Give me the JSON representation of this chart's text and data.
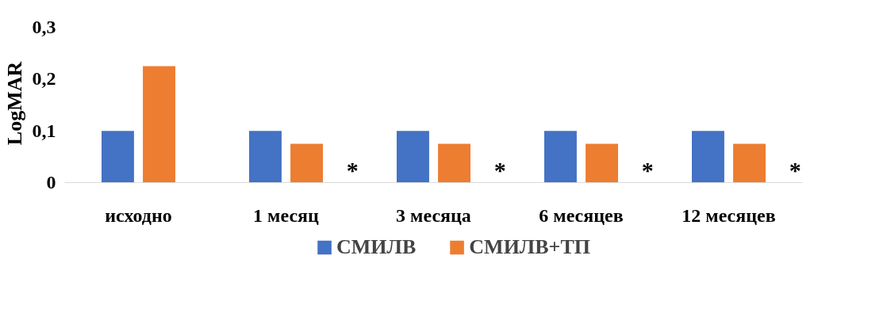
{
  "chart_data": {
    "type": "bar",
    "ylabel": "LogMAR",
    "categories": [
      "исходно",
      "1 месяц",
      "3 месяца",
      "6 месяцев",
      "12 месяцев"
    ],
    "series": [
      {
        "name": "СМИЛВ",
        "color": "#4472c4",
        "values": [
          0.1,
          0.1,
          0.1,
          0.1,
          0.1
        ]
      },
      {
        "name": "СМИЛВ+ТП",
        "color": "#ed7d31",
        "values": [
          0.225,
          0.075,
          0.075,
          0.075,
          0.075
        ]
      }
    ],
    "ylim": [
      0,
      0.3
    ],
    "yticks": [
      {
        "value": 0,
        "label": "0"
      },
      {
        "value": 0.1,
        "label": "0,1"
      },
      {
        "value": 0.2,
        "label": "0,2"
      },
      {
        "value": 0.3,
        "label": "0,3"
      }
    ],
    "annotations": [
      "*",
      "*",
      "*",
      "*"
    ],
    "grid": false,
    "legend": "bottom"
  }
}
